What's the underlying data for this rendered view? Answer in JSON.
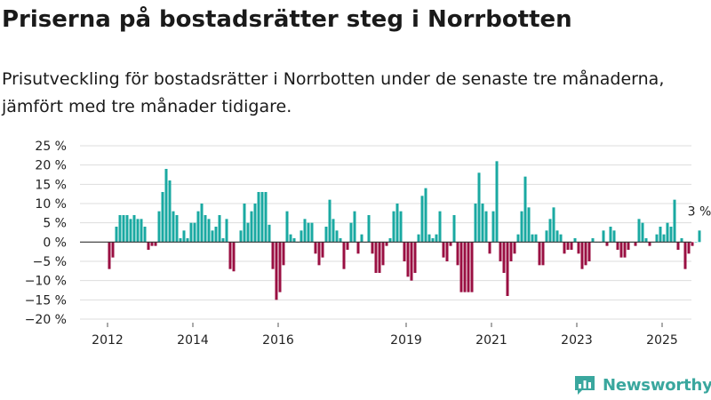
{
  "title": "Priserna på bostadsrätter steg i Norrbotten",
  "subtitle": "Prisutveckling för bostadsrätter i Norrbotten under de senaste tre månaderna, jämfört med tre månader tidigare.",
  "brand": {
    "name": "Newsworthy",
    "color": "#3aa79e"
  },
  "colors": {
    "positive": "#1aa9a2",
    "negative": "#9a0f42",
    "grid": "#dddddd",
    "axis": "#333333"
  },
  "chart_data": {
    "type": "bar",
    "ylim": [
      -20,
      25
    ],
    "y_ticks": [
      25,
      20,
      15,
      10,
      5,
      0,
      -5,
      -10,
      -15,
      -20
    ],
    "y_tick_labels": [
      "25 %",
      "20 %",
      "15 %",
      "10 %",
      "5 %",
      "0 %",
      "−5 %",
      "−10 %",
      "−15 %",
      "−20 %"
    ],
    "x_ticks": [
      2012,
      2014,
      2016,
      2019,
      2021,
      2023,
      2025
    ],
    "x_tick_labels": [
      "2012",
      "2014",
      "2016",
      "2019",
      "2021",
      "2023",
      "2025"
    ],
    "annotation": {
      "text": "3 %",
      "value": 3
    },
    "grid": true,
    "x_start": "2012-01",
    "values": [
      -7,
      -4,
      4,
      7,
      7,
      7,
      6,
      7,
      6,
      6,
      4,
      -2,
      -1,
      -1,
      8,
      13,
      19,
      16,
      8,
      7,
      1,
      3,
      1,
      5,
      5,
      8,
      10,
      7,
      6,
      3,
      4,
      7,
      1,
      6,
      -7,
      -7.6,
      0,
      3,
      10,
      5,
      8,
      10,
      13,
      13,
      13,
      4.5,
      -7,
      -15,
      -13,
      -6,
      8,
      2,
      1,
      0,
      3,
      6,
      5,
      5,
      -3,
      -6,
      -4,
      4,
      11,
      6,
      3,
      1,
      -7,
      -2,
      5,
      8,
      -3,
      2,
      0,
      7,
      -3,
      -8,
      -8,
      -6,
      -1,
      1,
      8,
      10,
      8,
      -5,
      -9,
      -10,
      -8,
      2,
      12,
      14,
      2,
      1,
      2,
      8,
      -4,
      -5,
      -1,
      7,
      -6,
      -13,
      -13,
      -13,
      -13,
      10,
      18,
      10,
      8,
      -3,
      8,
      21,
      -5,
      -8,
      -14,
      -5,
      -3,
      2,
      8,
      17,
      9,
      2,
      2,
      -6,
      -6,
      3,
      6,
      9,
      3,
      2,
      -3,
      -2,
      -2,
      1,
      -3,
      -7,
      -6,
      -5,
      1,
      0,
      0,
      3,
      -1,
      4,
      3,
      -2,
      -4,
      -4,
      -2,
      0,
      -1,
      6,
      5,
      1,
      -1,
      0,
      2,
      4,
      2,
      5,
      4,
      11,
      -2,
      1,
      -7,
      -3,
      -1,
      0,
      3
    ]
  }
}
